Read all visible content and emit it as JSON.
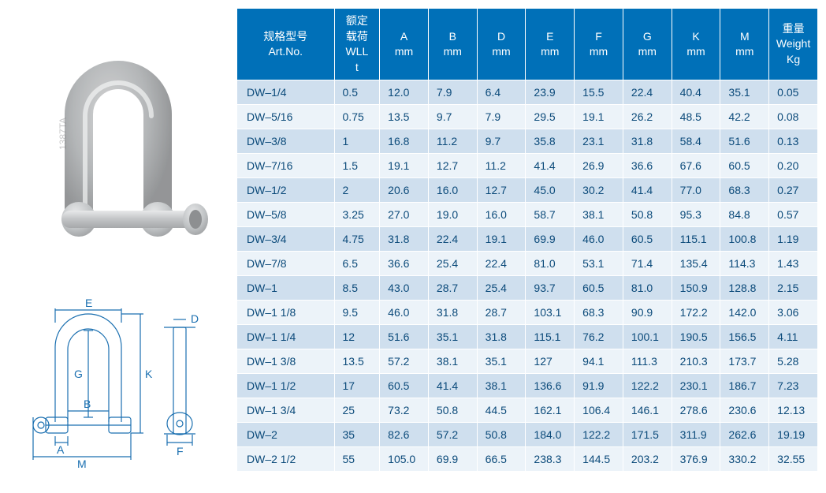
{
  "image": {
    "shackle_fill": "#c8cbcd",
    "shackle_stroke": "#9a9c9e",
    "pin_fill": "#d8dadb"
  },
  "diagram": {
    "line_color": "#1a6fb0",
    "label_color": "#1a6fb0",
    "labels": {
      "E": "E",
      "D": "D",
      "G": "G",
      "K": "K",
      "B": "B",
      "A": "A",
      "F": "F",
      "M": "M"
    }
  },
  "table": {
    "header_bg": "#0070b8",
    "header_fg": "#ffffff",
    "row_even_bg": "#cfdfee",
    "row_odd_bg": "#ecf3f9",
    "cell_fg": "#0b4a7a",
    "columns": [
      {
        "cn": "规格型号",
        "en": "Art.No.",
        "un": ""
      },
      {
        "cn": "额定",
        "en": "载荷",
        "un": "WLL",
        "un2": "t"
      },
      {
        "cn": "A",
        "en": "mm",
        "un": ""
      },
      {
        "cn": "B",
        "en": "mm",
        "un": ""
      },
      {
        "cn": "D",
        "en": "mm",
        "un": ""
      },
      {
        "cn": "E",
        "en": "mm",
        "un": ""
      },
      {
        "cn": "F",
        "en": "mm",
        "un": ""
      },
      {
        "cn": "G",
        "en": "mm",
        "un": ""
      },
      {
        "cn": "K",
        "en": "mm",
        "un": ""
      },
      {
        "cn": "M",
        "en": "mm",
        "un": ""
      },
      {
        "cn": "重量",
        "en": "Weight",
        "un": "Kg"
      }
    ],
    "rows": [
      [
        "DW–1/4",
        "0.5",
        "12.0",
        "7.9",
        "6.4",
        "23.9",
        "15.5",
        "22.4",
        "40.4",
        "35.1",
        "0.05"
      ],
      [
        "DW–5/16",
        "0.75",
        "13.5",
        "9.7",
        "7.9",
        "29.5",
        "19.1",
        "26.2",
        "48.5",
        "42.2",
        "0.08"
      ],
      [
        "DW–3/8",
        "1",
        "16.8",
        "11.2",
        "9.7",
        "35.8",
        "23.1",
        "31.8",
        "58.4",
        "51.6",
        "0.13"
      ],
      [
        "DW–7/16",
        "1.5",
        "19.1",
        "12.7",
        "11.2",
        "41.4",
        "26.9",
        "36.6",
        "67.6",
        "60.5",
        "0.20"
      ],
      [
        "DW–1/2",
        "2",
        "20.6",
        "16.0",
        "12.7",
        "45.0",
        "30.2",
        "41.4",
        "77.0",
        "68.3",
        "0.27"
      ],
      [
        "DW–5/8",
        "3.25",
        "27.0",
        "19.0",
        "16.0",
        "58.7",
        "38.1",
        "50.8",
        "95.3",
        "84.8",
        "0.57"
      ],
      [
        "DW–3/4",
        "4.75",
        "31.8",
        "22.4",
        "19.1",
        "69.9",
        "46.0",
        "60.5",
        "115.1",
        "100.8",
        "1.19"
      ],
      [
        "DW–7/8",
        "6.5",
        "36.6",
        "25.4",
        "22.4",
        "81.0",
        "53.1",
        "71.4",
        "135.4",
        "114.3",
        "1.43"
      ],
      [
        "DW–1",
        "8.5",
        "43.0",
        "28.7",
        "25.4",
        "93.7",
        "60.5",
        "81.0",
        "150.9",
        "128.8",
        "2.15"
      ],
      [
        "DW–1 1/8",
        "9.5",
        "46.0",
        "31.8",
        "28.7",
        "103.1",
        "68.3",
        "90.9",
        "172.2",
        "142.0",
        "3.06"
      ],
      [
        "DW–1 1/4",
        "12",
        "51.6",
        "35.1",
        "31.8",
        "115.1",
        "76.2",
        "100.1",
        "190.5",
        "156.5",
        "4.11"
      ],
      [
        "DW–1 3/8",
        "13.5",
        "57.2",
        "38.1",
        "35.1",
        "127",
        "94.1",
        "111.3",
        "210.3",
        "173.7",
        "5.28"
      ],
      [
        "DW–1 1/2",
        "17",
        "60.5",
        "41.4",
        "38.1",
        "136.6",
        "91.9",
        "122.2",
        "230.1",
        "186.7",
        "7.23"
      ],
      [
        "DW–1 3/4",
        "25",
        "73.2",
        "50.8",
        "44.5",
        "162.1",
        "106.4",
        "146.1",
        "278.6",
        "230.6",
        "12.13"
      ],
      [
        "DW–2",
        "35",
        "82.6",
        "57.2",
        "50.8",
        "184.0",
        "122.2",
        "171.5",
        "311.9",
        "262.6",
        "19.19"
      ],
      [
        "DW–2 1/2",
        "55",
        "105.0",
        "69.9",
        "66.5",
        "238.3",
        "144.5",
        "203.2",
        "376.9",
        "330.2",
        "32.55"
      ]
    ]
  }
}
